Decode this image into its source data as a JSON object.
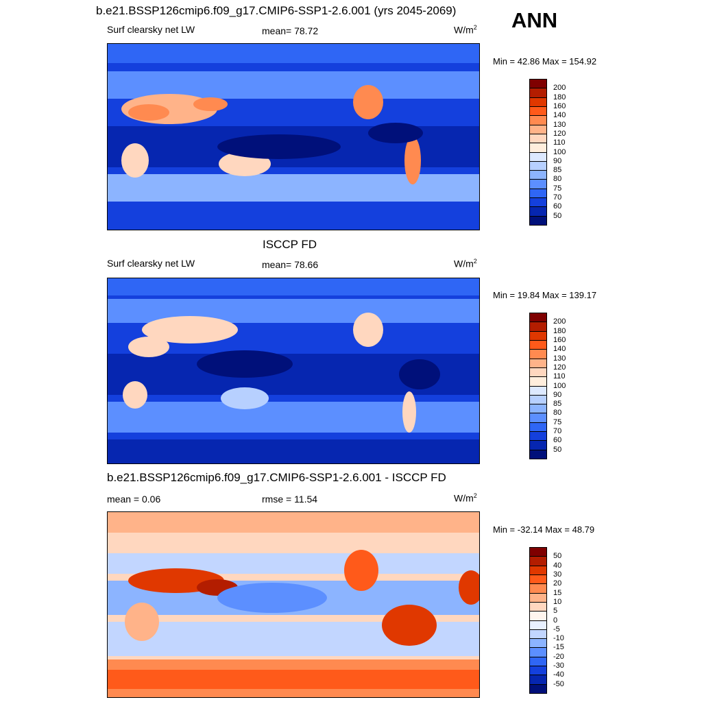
{
  "header": {
    "main_title": "b.e21.BSSP126cmip6.f09_g17.CMIP6-SSP1-2.6.001 (yrs 2045-2069)",
    "season": "ANN"
  },
  "panels": [
    {
      "title": "",
      "left_label": "Surf clearsky net LW",
      "center_label": "mean=  78.72",
      "units_base": "W/m",
      "units_exp": "2",
      "minmax": "Min =  42.86 Max = 154.92",
      "colorbar": {
        "ticks": [
          "200",
          "180",
          "160",
          "140",
          "130",
          "120",
          "110",
          "100",
          "90",
          "85",
          "80",
          "75",
          "70",
          "60",
          "50"
        ],
        "colors": [
          "#7f0000",
          "#b31d00",
          "#e03800",
          "#ff5a1a",
          "#ff8a50",
          "#ffb389",
          "#ffd7bf",
          "#ffeedd",
          "#dde9ff",
          "#b7d0ff",
          "#8cb4ff",
          "#5c8fff",
          "#2f66f5",
          "#1440dd",
          "#0626b0",
          "#00107a"
        ]
      }
    },
    {
      "title": "ISCCP FD",
      "left_label": "Surf clearsky net LW",
      "center_label": "mean=  78.66",
      "units_base": "W/m",
      "units_exp": "2",
      "minmax": "Min =  19.84 Max = 139.17",
      "colorbar": {
        "ticks": [
          "200",
          "180",
          "160",
          "140",
          "130",
          "120",
          "110",
          "100",
          "90",
          "85",
          "80",
          "75",
          "70",
          "60",
          "50"
        ],
        "colors": [
          "#7f0000",
          "#b31d00",
          "#e03800",
          "#ff5a1a",
          "#ff8a50",
          "#ffb389",
          "#ffd7bf",
          "#ffeedd",
          "#dde9ff",
          "#b7d0ff",
          "#8cb4ff",
          "#5c8fff",
          "#2f66f5",
          "#1440dd",
          "#0626b0",
          "#00107a"
        ]
      }
    },
    {
      "title": "b.e21.BSSP126cmip6.f09_g17.CMIP6-SSP1-2.6.001 - ISCCP FD",
      "left_label": "mean =   0.06",
      "center_label": "rmse =  11.54",
      "units_base": "W/m",
      "units_exp": "2",
      "minmax": "Min = -32.14 Max =  48.79",
      "colorbar": {
        "ticks": [
          "50",
          "40",
          "30",
          "20",
          "15",
          "10",
          "5",
          "0",
          "-5",
          "-10",
          "-15",
          "-20",
          "-30",
          "-40",
          "-50"
        ],
        "colors": [
          "#7f0000",
          "#b31d00",
          "#e03800",
          "#ff5a1a",
          "#ff8a50",
          "#ffb389",
          "#ffd7bf",
          "#fff5ee",
          "#e8f0ff",
          "#c2d6ff",
          "#8cb4ff",
          "#5c8fff",
          "#2f66f5",
          "#1440dd",
          "#0626b0",
          "#00107a"
        ]
      }
    }
  ]
}
